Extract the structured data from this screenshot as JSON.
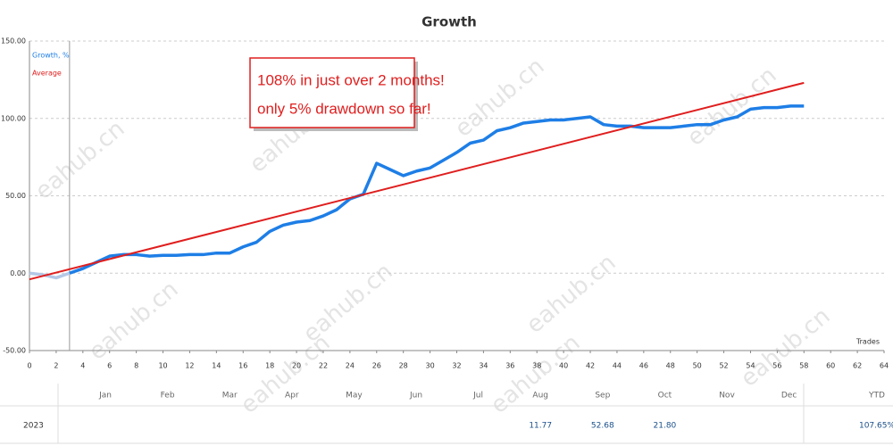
{
  "chart_data": {
    "type": "line",
    "title": "Growth",
    "x_label": "Trades",
    "xlim": [
      0,
      64
    ],
    "xticks": [
      0,
      2,
      4,
      6,
      8,
      10,
      12,
      14,
      16,
      18,
      20,
      22,
      24,
      26,
      28,
      30,
      32,
      34,
      36,
      38,
      40,
      42,
      44,
      46,
      48,
      50,
      52,
      54,
      56,
      58,
      60,
      62,
      64
    ],
    "ylim": [
      -50,
      150
    ],
    "yticks": [
      {
        "value": -50,
        "label": "-50.00"
      },
      {
        "value": 0,
        "label": "0.00"
      },
      {
        "value": 50,
        "label": "50.00"
      },
      {
        "value": 100,
        "label": "100.00"
      },
      {
        "value": 150,
        "label": "150.00"
      }
    ],
    "grid": true,
    "series": [
      {
        "color": "#b4c8e6",
        "x": [
          0,
          1,
          2,
          3
        ],
        "values": [
          0,
          -1,
          -3,
          0
        ]
      },
      {
        "name": "Growth, %",
        "color": "#1e7ee6",
        "x": [
          3,
          4,
          5,
          6,
          7,
          8,
          9,
          10,
          11,
          12,
          13,
          14,
          15,
          16,
          17,
          18,
          19,
          20,
          21,
          22,
          23,
          24,
          25,
          26,
          27,
          28,
          29,
          30,
          31,
          32,
          33,
          34,
          35,
          36,
          37,
          38,
          39,
          40,
          41,
          42,
          43,
          44,
          45,
          46,
          47,
          48,
          49,
          50,
          51,
          52,
          53,
          54,
          55,
          56,
          57,
          58
        ],
        "values": [
          0,
          3,
          7,
          11,
          12,
          12,
          11,
          11.5,
          11.5,
          12,
          12,
          13,
          13,
          17,
          20,
          27,
          31,
          33,
          34,
          37,
          41,
          48,
          51,
          71,
          67,
          63,
          66,
          68,
          73,
          78,
          84,
          86,
          92,
          94,
          97,
          98,
          99,
          99,
          100,
          101,
          96,
          95,
          95,
          94,
          94,
          94,
          95,
          96,
          96,
          99,
          101,
          106,
          107,
          107,
          108,
          108
        ]
      },
      {
        "name": "Average",
        "color": "#e01e1e",
        "x": [
          0,
          58
        ],
        "values": [
          -4,
          123
        ]
      }
    ],
    "marker_x": 3,
    "annotation": [
      "108% in just over 2 months!",
      "only 5% drawdown so far!"
    ],
    "watermark": "eahub.cn"
  },
  "table": {
    "columns": [
      "Jan",
      "Feb",
      "Mar",
      "Apr",
      "May",
      "Jun",
      "Jul",
      "Aug",
      "Sep",
      "Oct",
      "Nov",
      "Dec",
      "YTD"
    ],
    "row": {
      "year": "2023",
      "cells": [
        null,
        null,
        null,
        null,
        null,
        null,
        null,
        "11.77",
        "52.68",
        "21.80",
        null,
        null,
        "107.65%"
      ]
    }
  }
}
